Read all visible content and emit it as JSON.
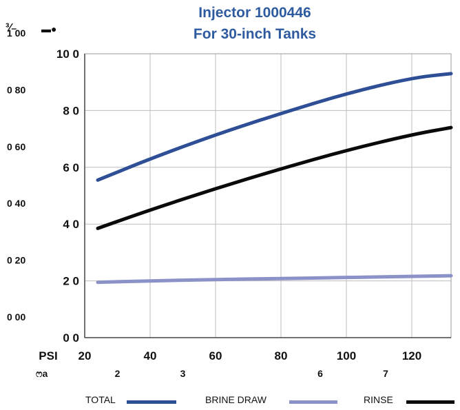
{
  "title": {
    "line1": "Injector 1000446",
    "line2": "For 30-inch Tanks"
  },
  "corner_marks": {
    "left": "³⁄₋",
    "right": "▬●"
  },
  "colors": {
    "total": "#2e4f96",
    "brine": "#8a92c8",
    "rinse": "#0a0a0a",
    "grid": "#bdbdbd",
    "title": "#2e5aa0"
  },
  "chart_data": {
    "type": "line",
    "title": "Injector 1000446 For 30-inch Tanks",
    "xlabel": "PSI",
    "x_ticks": [
      "20",
      "40",
      "60",
      "80",
      "100",
      "120"
    ],
    "xlim": [
      20,
      132
    ],
    "ylim": [
      0,
      100
    ],
    "y_ticks_inner": [
      "0 0",
      "2 0",
      "4 0",
      "6 0",
      "8 0",
      "10 0"
    ],
    "y_ticks_outer": [
      "0 00",
      "0 20",
      "0 40",
      "0 60",
      "0 80",
      "1 00"
    ],
    "secondary_row_label": "ෆa",
    "secondary_row_ticks": [
      {
        "x": 30,
        "label": "2"
      },
      {
        "x": 50,
        "label": "3"
      },
      {
        "x": 92,
        "label": "6"
      },
      {
        "x": 112,
        "label": "7"
      }
    ],
    "grid": true,
    "legend_position": "bottom",
    "series": [
      {
        "name": "TOTAL",
        "color": "#2e4f96",
        "x": [
          24,
          40,
          60,
          80,
          100,
          120,
          132
        ],
        "y": [
          55.5,
          63,
          71.5,
          79,
          86,
          91.5,
          93
        ]
      },
      {
        "name": "BRINE DRAW",
        "color": "#8a92c8",
        "x": [
          24,
          40,
          60,
          80,
          100,
          120,
          132
        ],
        "y": [
          19.5,
          20,
          20.5,
          20.8,
          21.2,
          21.6,
          21.8
        ]
      },
      {
        "name": "RINSE",
        "color": "#0a0a0a",
        "x": [
          24,
          40,
          60,
          80,
          100,
          120,
          132
        ],
        "y": [
          38.5,
          45,
          52.5,
          59.5,
          66,
          71.5,
          74
        ]
      }
    ]
  }
}
